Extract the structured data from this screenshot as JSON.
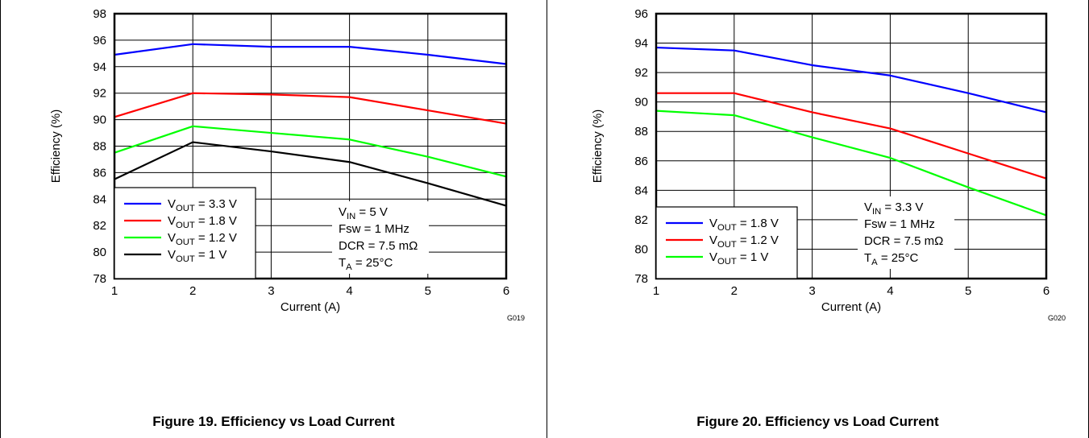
{
  "colors": {
    "blue": "#0000ff",
    "red": "#ff0000",
    "green": "#00ff00",
    "black": "#000000"
  },
  "chart_data": [
    {
      "type": "line",
      "caption": "Figure 19. Efficiency vs Load Current",
      "code": "G019",
      "xlabel": "Current (A)",
      "ylabel": "Efficiency (%)",
      "xlim": [
        1,
        6
      ],
      "ylim": [
        78,
        98
      ],
      "xticks": [
        1,
        2,
        3,
        4,
        5,
        6
      ],
      "yticks": [
        78,
        80,
        82,
        84,
        86,
        88,
        90,
        92,
        94,
        96,
        98
      ],
      "grid": true,
      "legend_position": "bottom-left",
      "series": [
        {
          "name_main": "V",
          "name_sub": "OUT",
          "name_rest": " = 3.3 V",
          "color": "#0000ff",
          "x": [
            1,
            2,
            3,
            4,
            5,
            6
          ],
          "y": [
            94.9,
            95.7,
            95.5,
            95.5,
            94.9,
            94.2
          ]
        },
        {
          "name_main": "V",
          "name_sub": "OUT",
          "name_rest": " = 1.8 V",
          "color": "#ff0000",
          "x": [
            1,
            2,
            3,
            4,
            5,
            6
          ],
          "y": [
            90.2,
            92.0,
            91.9,
            91.7,
            90.7,
            89.7
          ]
        },
        {
          "name_main": "V",
          "name_sub": "OUT",
          "name_rest": " = 1.2 V",
          "color": "#00ff00",
          "x": [
            1,
            2,
            3,
            4,
            5,
            6
          ],
          "y": [
            87.5,
            89.5,
            89.0,
            88.5,
            87.2,
            85.7
          ]
        },
        {
          "name_main": "V",
          "name_sub": "OUT",
          "name_rest": " = 1 V",
          "color": "#000000",
          "x": [
            1,
            2,
            3,
            4,
            5,
            6
          ],
          "y": [
            85.5,
            88.3,
            87.6,
            86.8,
            85.2,
            83.5
          ]
        }
      ],
      "conditions": [
        {
          "main": "V",
          "sub": "IN",
          "rest": " = 5 V"
        },
        {
          "main": "Fsw = 1 MHz",
          "sub": "",
          "rest": ""
        },
        {
          "main": "DCR = 7.5 mΩ",
          "sub": "",
          "rest": ""
        },
        {
          "main": "T",
          "sub": "A",
          "rest": " = 25°C"
        }
      ]
    },
    {
      "type": "line",
      "caption": "Figure 20. Efficiency vs Load Current",
      "code": "G020",
      "xlabel": "Current (A)",
      "ylabel": "Efficiency (%)",
      "xlim": [
        1,
        6
      ],
      "ylim": [
        78,
        96
      ],
      "xticks": [
        1,
        2,
        3,
        4,
        5,
        6
      ],
      "yticks": [
        78,
        80,
        82,
        84,
        86,
        88,
        90,
        92,
        94,
        96
      ],
      "grid": true,
      "legend_position": "bottom-left",
      "series": [
        {
          "name_main": "V",
          "name_sub": "OUT",
          "name_rest": " = 1.8 V",
          "color": "#0000ff",
          "x": [
            1,
            2,
            3,
            4,
            5,
            6
          ],
          "y": [
            93.7,
            93.5,
            92.5,
            91.8,
            90.6,
            89.3
          ]
        },
        {
          "name_main": "V",
          "name_sub": "OUT",
          "name_rest": " = 1.2 V",
          "color": "#ff0000",
          "x": [
            1,
            2,
            3,
            4,
            5,
            6
          ],
          "y": [
            90.6,
            90.6,
            89.3,
            88.2,
            86.5,
            84.8
          ]
        },
        {
          "name_main": "V",
          "name_sub": "OUT",
          "name_rest": " = 1 V",
          "color": "#00ff00",
          "x": [
            1,
            2,
            3,
            4,
            5,
            6
          ],
          "y": [
            89.4,
            89.1,
            87.6,
            86.2,
            84.2,
            82.3
          ]
        }
      ],
      "conditions": [
        {
          "main": "V",
          "sub": "IN",
          "rest": " = 3.3 V"
        },
        {
          "main": "Fsw = 1 MHz",
          "sub": "",
          "rest": ""
        },
        {
          "main": "DCR = 7.5 mΩ",
          "sub": "",
          "rest": ""
        },
        {
          "main": "T",
          "sub": "A",
          "rest": " = 25°C"
        }
      ]
    }
  ]
}
